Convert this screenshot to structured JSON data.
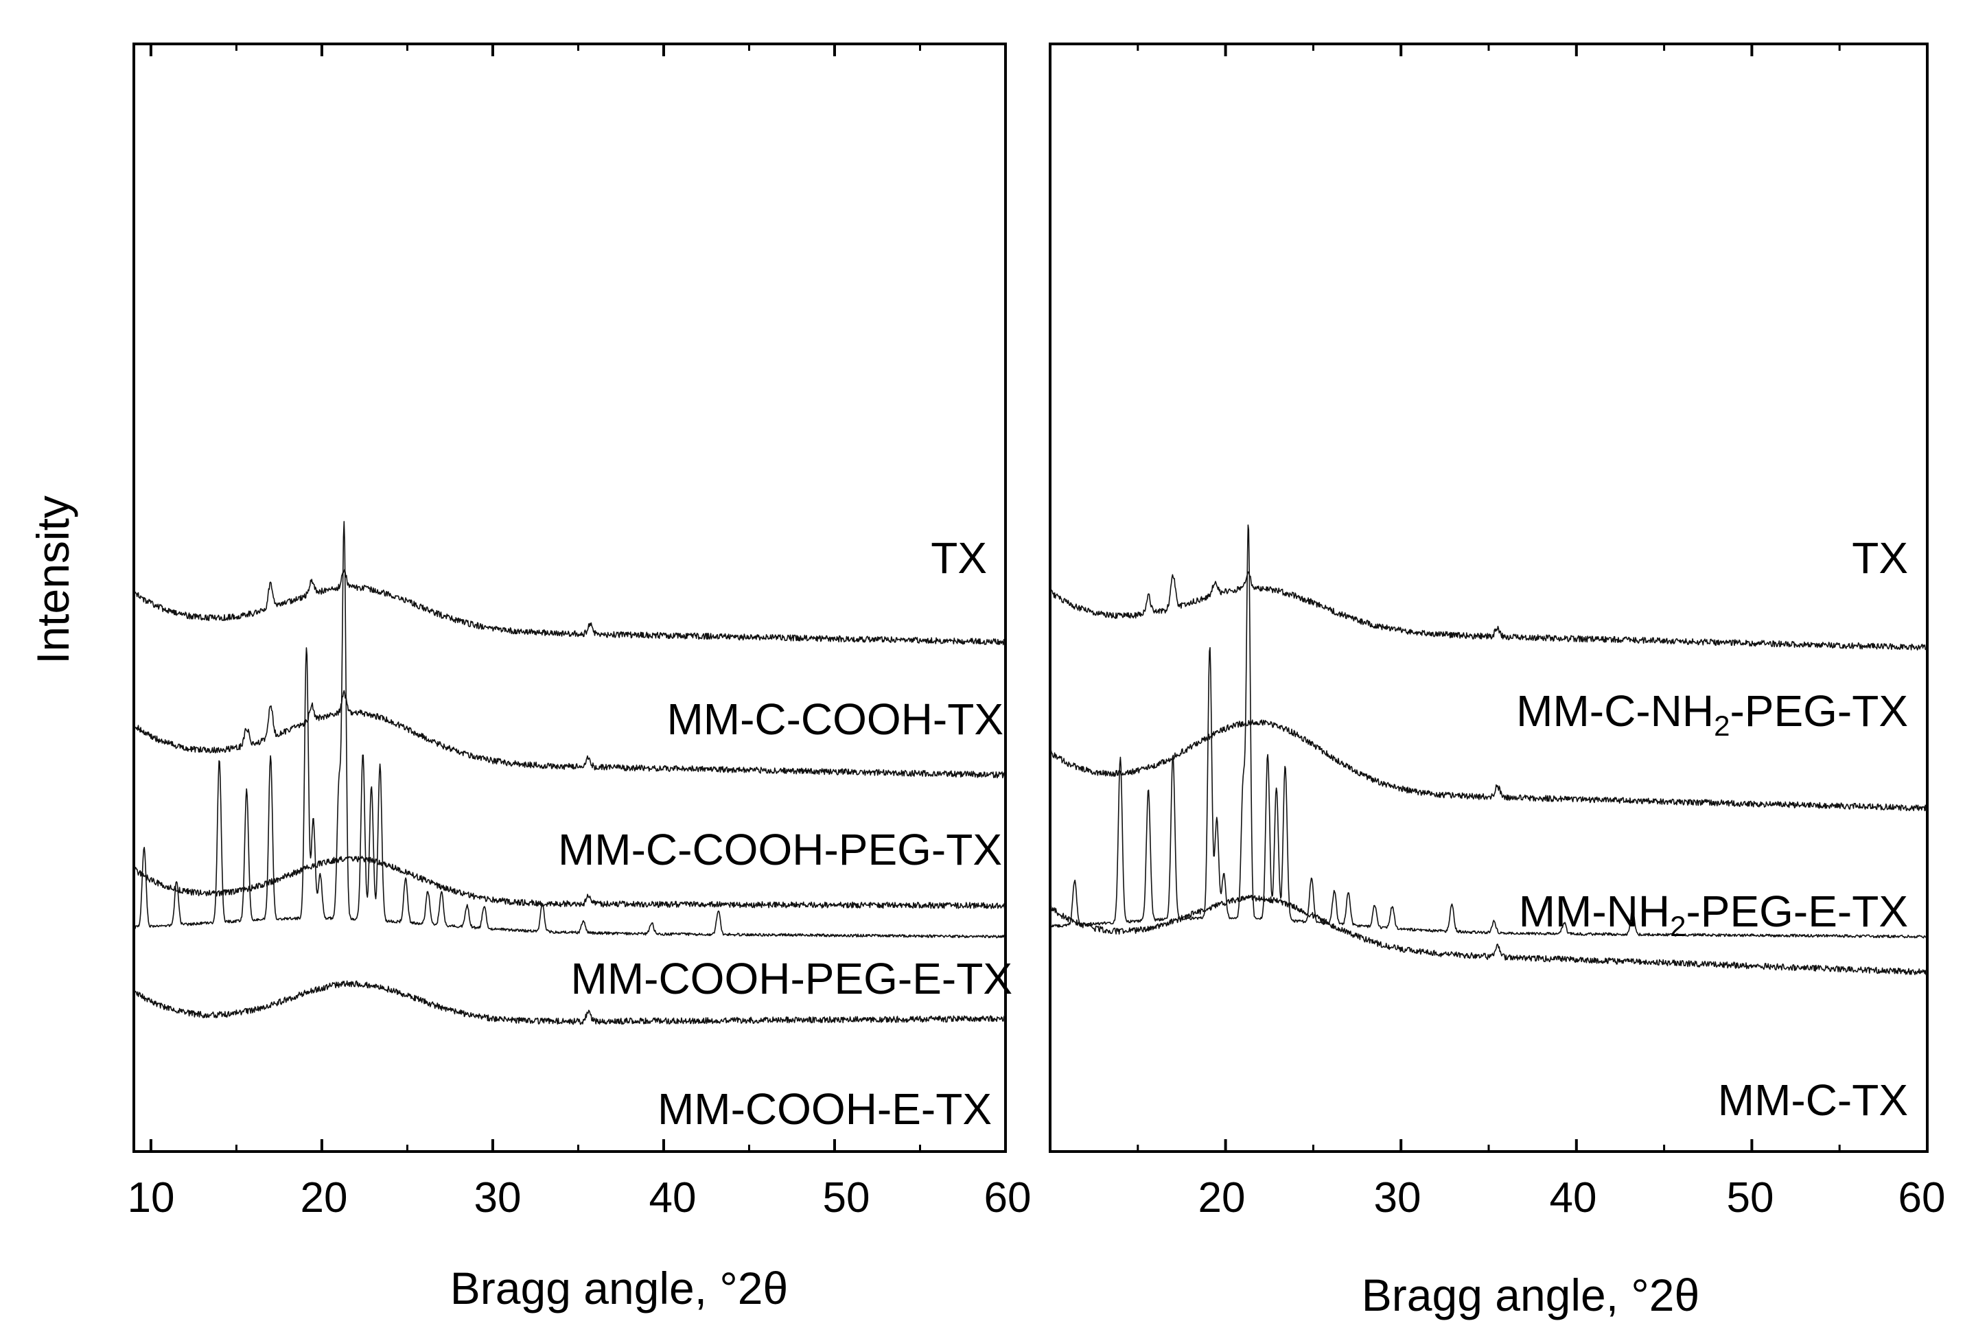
{
  "chart_data": [
    {
      "panel": "left",
      "type": "line",
      "xlabel": "Bragg angle, °2θ",
      "ylabel": "Intensity",
      "xlim": [
        9,
        60
      ],
      "x_ticks": [
        10,
        20,
        30,
        40,
        50,
        60
      ],
      "x_tick_labels": [
        "10",
        "20",
        "30",
        "40",
        "50",
        "60"
      ],
      "y_ticks_shown": false,
      "series": [
        {
          "name": "TX",
          "label_parts": [
            {
              "t": "TX"
            }
          ],
          "kind": "crystalline",
          "baseline": 0.8,
          "baseline_end": 0.806,
          "peaks": [
            [
              9.6,
              0.072
            ],
            [
              11.5,
              0.04
            ],
            [
              14.0,
              0.148
            ],
            [
              15.6,
              0.118
            ],
            [
              17.0,
              0.148
            ],
            [
              19.1,
              0.245
            ],
            [
              19.5,
              0.09
            ],
            [
              19.9,
              0.04
            ],
            [
              21.0,
              0.12
            ],
            [
              21.3,
              0.355
            ],
            [
              22.4,
              0.15
            ],
            [
              22.9,
              0.12
            ],
            [
              23.4,
              0.14
            ],
            [
              24.9,
              0.04
            ],
            [
              26.2,
              0.03
            ],
            [
              27.0,
              0.03
            ],
            [
              28.5,
              0.02
            ],
            [
              29.5,
              0.02
            ],
            [
              32.9,
              0.025
            ],
            [
              35.3,
              0.01
            ],
            [
              39.3,
              0.01
            ],
            [
              43.2,
              0.022
            ]
          ]
        },
        {
          "name": "MM-C-COOH-TX",
          "label_parts": [
            {
              "t": "MM-C-COOH-TX"
            }
          ],
          "kind": "amorphous",
          "baseline": 0.525,
          "baseline_end": 0.54,
          "hump": 0.038,
          "peaks": [
            [
              17.0,
              0.022
            ],
            [
              19.4,
              0.012
            ],
            [
              21.3,
              0.016
            ],
            [
              35.7,
              0.01
            ]
          ]
        },
        {
          "name": "MM-C-COOH-PEG-TX",
          "label_parts": [
            {
              "t": "MM-C-COOH-PEG-TX"
            }
          ],
          "kind": "amorphous",
          "baseline": 0.645,
          "baseline_end": 0.66,
          "hump": 0.045,
          "peaks": [
            [
              15.6,
              0.016
            ],
            [
              17.0,
              0.03
            ],
            [
              19.4,
              0.014
            ],
            [
              21.3,
              0.018
            ],
            [
              35.6,
              0.008
            ]
          ]
        },
        {
          "name": "MM-COOH-PEG-E-TX",
          "label_parts": [
            {
              "t": "MM-COOH-PEG-E-TX"
            }
          ],
          "kind": "amorphous",
          "baseline": 0.775,
          "baseline_end": 0.778,
          "hump": 0.04,
          "peaks": [
            [
              35.6,
              0.008
            ]
          ]
        },
        {
          "name": "MM-COOH-E-TX",
          "label_parts": [
            {
              "t": "MM-COOH-E-TX"
            }
          ],
          "kind": "amorphous",
          "baseline": 0.885,
          "baseline_end": 0.88,
          "hump": 0.035,
          "peaks": [
            [
              35.6,
              0.008
            ]
          ]
        }
      ]
    },
    {
      "panel": "right",
      "type": "line",
      "xlabel": "Bragg angle, °2θ",
      "xlim": [
        10,
        60
      ],
      "x_ticks": [
        20,
        30,
        40,
        50,
        60
      ],
      "x_tick_labels": [
        "20",
        "30",
        "40",
        "50",
        "60"
      ],
      "y_ticks_shown": false,
      "series": [
        {
          "name": "TX",
          "label_parts": [
            {
              "t": "TX"
            }
          ],
          "kind": "crystalline",
          "baseline": 0.8,
          "baseline_end": 0.806,
          "peaks": [
            [
              11.4,
              0.04
            ],
            [
              14.0,
              0.148
            ],
            [
              15.6,
              0.118
            ],
            [
              17.0,
              0.148
            ],
            [
              19.1,
              0.245
            ],
            [
              19.5,
              0.09
            ],
            [
              19.9,
              0.04
            ],
            [
              21.0,
              0.12
            ],
            [
              21.3,
              0.355
            ],
            [
              22.4,
              0.15
            ],
            [
              22.9,
              0.12
            ],
            [
              23.4,
              0.14
            ],
            [
              24.9,
              0.04
            ],
            [
              26.2,
              0.03
            ],
            [
              27.0,
              0.03
            ],
            [
              28.5,
              0.02
            ],
            [
              29.5,
              0.02
            ],
            [
              32.9,
              0.025
            ],
            [
              35.3,
              0.01
            ],
            [
              39.3,
              0.01
            ],
            [
              43.2,
              0.022
            ]
          ]
        },
        {
          "name": "MM-C-NH2-PEG-TX",
          "label_parts": [
            {
              "t": "MM-C-NH"
            },
            {
              "t": "2",
              "sub": true
            },
            {
              "t": "-PEG-TX"
            }
          ],
          "kind": "amorphous",
          "baseline": 0.525,
          "baseline_end": 0.545,
          "hump": 0.038,
          "peaks": [
            [
              15.6,
              0.016
            ],
            [
              17.0,
              0.03
            ],
            [
              19.4,
              0.012
            ],
            [
              21.3,
              0.014
            ],
            [
              35.5,
              0.008
            ]
          ]
        },
        {
          "name": "MM-NH2-PEG-E-TX",
          "label_parts": [
            {
              "t": "MM-NH"
            },
            {
              "t": "2",
              "sub": true
            },
            {
              "t": "-PEG-E-TX"
            }
          ],
          "kind": "amorphous",
          "baseline": 0.67,
          "baseline_end": 0.69,
          "hump": 0.062,
          "peaks": [
            [
              35.5,
              0.01
            ]
          ]
        },
        {
          "name": "MM-C-TX",
          "label_parts": [
            {
              "t": "MM-C-TX"
            }
          ],
          "kind": "amorphous",
          "baseline": 0.81,
          "baseline_end": 0.838,
          "hump": 0.045,
          "peaks": [
            [
              35.5,
              0.009
            ]
          ]
        }
      ]
    }
  ]
}
